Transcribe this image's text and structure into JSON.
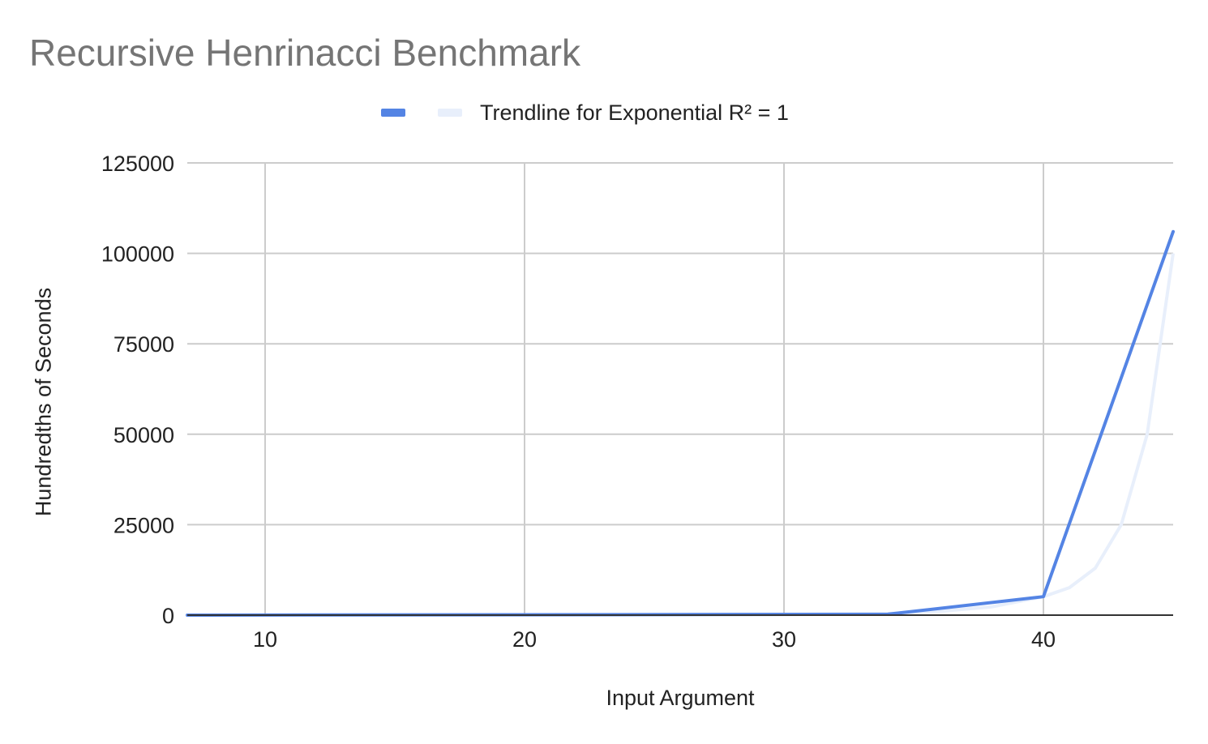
{
  "chart_data": {
    "type": "line",
    "title": "Recursive Henrinacci Benchmark",
    "xlabel": "Input Argument",
    "ylabel": "Hundredths of Seconds",
    "xlim": [
      7,
      45
    ],
    "ylim": [
      0,
      125000
    ],
    "x_ticks": [
      10,
      20,
      30,
      40
    ],
    "y_ticks": [
      0,
      25000,
      50000,
      75000,
      100000,
      125000
    ],
    "grid": true,
    "legend_position": "top",
    "series": [
      {
        "color": "#5484e4",
        "x": [
          7,
          34,
          40,
          45
        ],
        "y": [
          0,
          250,
          5100,
          106000
        ]
      },
      {
        "name": "Trendline for Exponential R² = 1",
        "color": "#e8effb",
        "type": "trendline",
        "x": [
          7,
          20,
          30,
          34,
          36,
          38,
          40,
          41,
          42,
          43,
          44,
          45
        ],
        "y": [
          0,
          5,
          150,
          450,
          1030,
          2280,
          5100,
          7600,
          13000,
          25000,
          50000,
          100000
        ]
      }
    ]
  }
}
